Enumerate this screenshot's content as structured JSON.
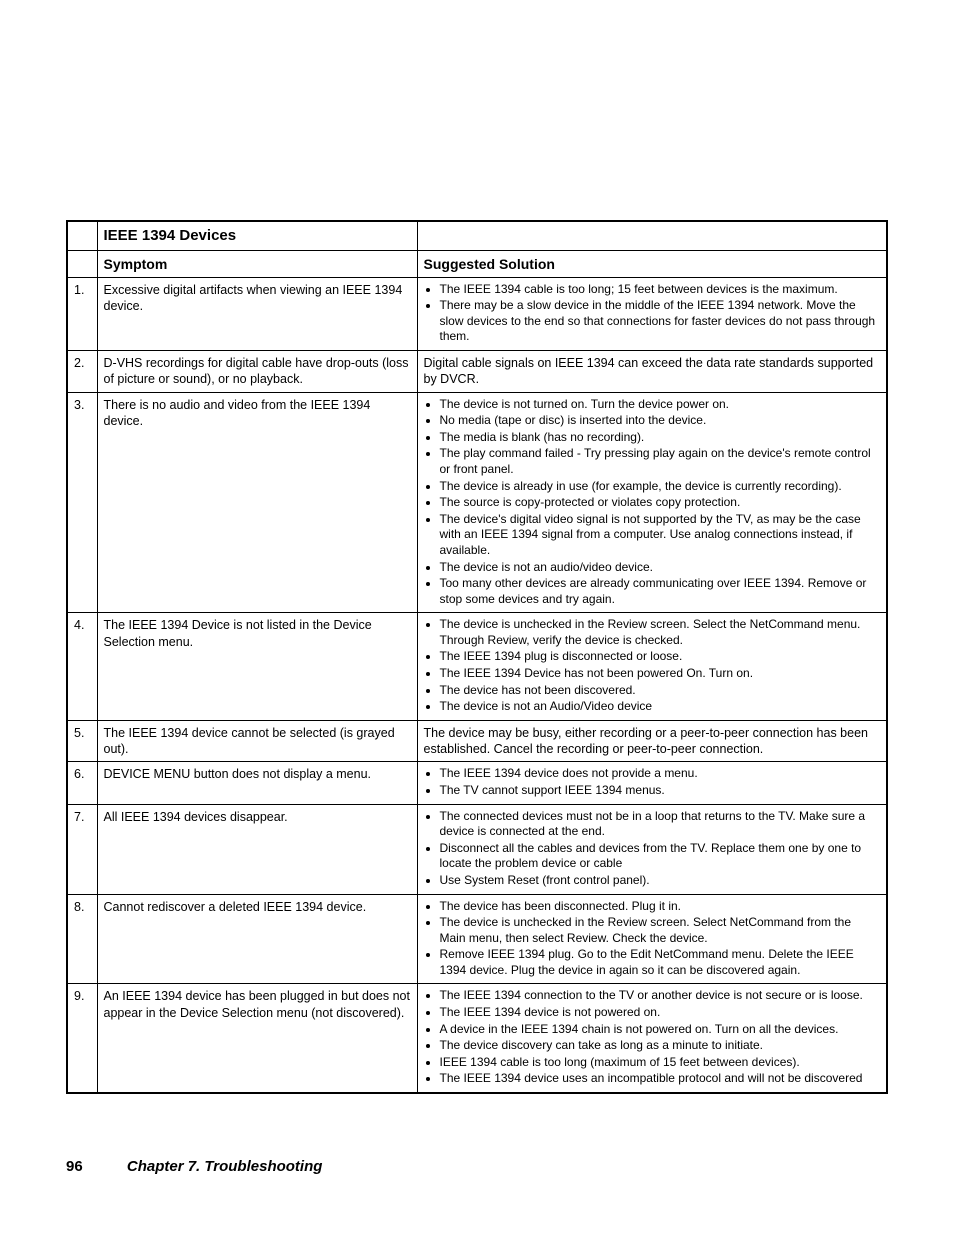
{
  "table": {
    "section_title": "IEEE 1394 Devices",
    "symptom_header": "Symptom",
    "solution_header": "Suggested Solution",
    "colors": {
      "border": "#000000",
      "background": "#ffffff",
      "text": "#000000"
    },
    "fonts": {
      "header_size_pt": 14,
      "body_size_pt": 12,
      "section_title_size_pt": 15
    },
    "rows": [
      {
        "num": "1.",
        "symptom": "Excessive digital artifacts when viewing an IEEE 1394 device.",
        "solution_type": "list",
        "solutions": [
          "The IEEE 1394 cable is too long; 15 feet between devices is the maximum.",
          "There may be a slow device in the middle of the IEEE 1394 network. Move the slow devices to the end so that connections for faster devices do not pass through them."
        ]
      },
      {
        "num": "2.",
        "symptom": "D-VHS recordings for digital cable have drop-outs (loss of picture or sound), or no playback.",
        "solution_type": "text",
        "solution_text": "Digital cable signals on IEEE 1394 can exceed the data rate standards supported by DVCR."
      },
      {
        "num": "3.",
        "symptom": "There is no audio and video from the IEEE 1394 device.",
        "solution_type": "list",
        "solutions": [
          "The device is not turned on.  Turn the device power on.",
          "No media (tape or disc) is inserted into the device.",
          "The media is blank (has no recording).",
          "The play command failed - Try pressing play again on the device's remote control or front panel.",
          "The device is already in use (for example, the device is currently recording).",
          "The source is copy-protected or violates copy protection.",
          "The device's digital video signal is not supported by the TV, as may be the case with  an IEEE 1394 signal from a computer.  Use analog connections instead, if available.",
          "The device is not an audio/video device.",
          "Too many other devices are already communicating over IEEE 1394.  Remove or stop some devices and try again."
        ]
      },
      {
        "num": "4.",
        "symptom": "The IEEE 1394 Device is not listed in the Device Selection menu.",
        "solution_type": "list",
        "solutions": [
          "The device is unchecked in the Review screen.  Select the NetCommand menu.  Through Review, verify the device is checked.",
          "The IEEE 1394 plug is disconnected or loose.",
          "The IEEE 1394 Device has not been powered On.  Turn on.",
          "The device has not been discovered.",
          "The device is not an Audio/Video device"
        ]
      },
      {
        "num": "5.",
        "symptom": "The IEEE 1394 device cannot be selected (is grayed out).",
        "solution_type": "text",
        "solution_text": "The device may be busy, either recording or a peer-to-peer connection has been established.  Cancel the recording or peer-to-peer connection."
      },
      {
        "num": "6.",
        "symptom": "DEVICE MENU button does not display a menu.",
        "solution_type": "list",
        "solutions": [
          "The IEEE 1394 device does not provide a menu.",
          "The TV cannot support IEEE 1394 menus."
        ]
      },
      {
        "num": "7.",
        "symptom": "All IEEE 1394 devices disappear.",
        "solution_type": "list",
        "solutions": [
          "The connected devices must not be in a loop that returns to the TV.  Make sure a device is connected at the end.",
          "Disconnect all the cables and devices from the TV.  Replace them one by one to locate the problem device or cable",
          "Use System Reset (front control panel)."
        ]
      },
      {
        "num": "8.",
        "symptom": "Cannot rediscover a deleted IEEE 1394 device.",
        "solution_type": "list",
        "solutions": [
          "The device has been disconnected.  Plug it in.",
          "The device is unchecked in the Review screen.  Select NetCommand from the Main menu, then select Review.  Check the device.",
          "Remove IEEE 1394 plug.  Go to the Edit NetCommand menu.  Delete the IEEE 1394 device.  Plug the device in again so it can be discovered again."
        ]
      },
      {
        "num": "9.",
        "symptom": "An IEEE 1394 device has been plugged in but does not appear in the Device Selection menu (not discovered).",
        "solution_type": "list",
        "solutions": [
          "The IEEE 1394 connection to the TV or another device is not secure  or is loose.",
          "The IEEE 1394 device is not powered on.",
          "A device in the IEEE 1394 chain is not powered on.  Turn on all the devices.",
          "The device discovery can take as long as a minute to initiate.",
          "IEEE 1394 cable is too long (maximum of 15 feet  between devices).",
          "The IEEE 1394 device uses an incompatible protocol and will not be discovered"
        ]
      }
    ]
  },
  "footer": {
    "page_number": "96",
    "chapter": "Chapter 7. Troubleshooting"
  }
}
